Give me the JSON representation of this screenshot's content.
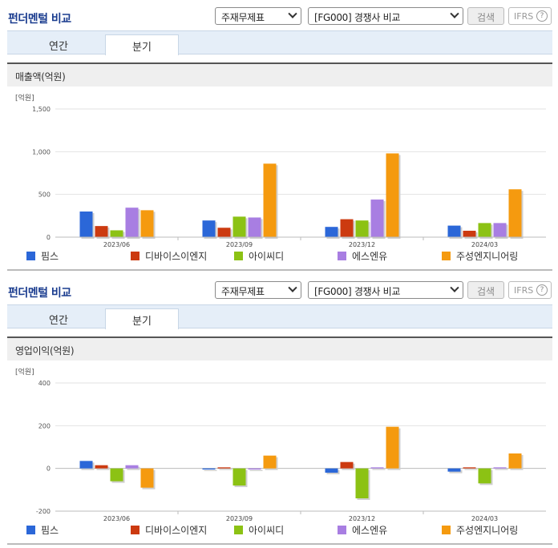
{
  "header": {
    "title": "펀더멘털 비교",
    "select_a": "주재무제표",
    "select_b": "[FG000] 경쟁사 비교",
    "search_label": "검색",
    "ifrs_label": "IFRS",
    "help_label": "?"
  },
  "tabs": [
    "연간",
    "분기"
  ],
  "colors": [
    "#2b67d8",
    "#cc3a10",
    "#8cc214",
    "#a87ee2",
    "#f59a0f"
  ],
  "charts": [
    {
      "section_title": "매출액(억원)",
      "chart_data": {
        "type": "bar",
        "unit": "[억원]",
        "categories": [
          "2023/06",
          "2023/09",
          "2023/12",
          "2024/03"
        ],
        "ylim": [
          0,
          1500
        ],
        "yticks": [
          "1,500",
          "1,000",
          "500",
          "0"
        ],
        "ytick_values": [
          1500,
          1000,
          500,
          0
        ],
        "series": [
          {
            "name": "핌스",
            "values": [
              300,
              195,
              120,
              135
            ]
          },
          {
            "name": "디바이스이엔지",
            "values": [
              130,
              110,
              210,
              75
            ]
          },
          {
            "name": "아이씨디",
            "values": [
              80,
              240,
              195,
              165
            ]
          },
          {
            "name": "에스엔유",
            "values": [
              345,
              230,
              440,
              165
            ]
          },
          {
            "name": "주성엔지니어링",
            "values": [
              315,
              860,
              980,
              560
            ]
          }
        ]
      }
    },
    {
      "section_title": "영업이익(억원)",
      "chart_data": {
        "type": "bar",
        "unit": "[억원]",
        "categories": [
          "2023/06",
          "2023/09",
          "2023/12",
          "2024/03"
        ],
        "ylim": [
          -200,
          400
        ],
        "yticks": [
          "400",
          "200",
          "0",
          "-200"
        ],
        "ytick_values": [
          400,
          200,
          0,
          -200
        ],
        "series": [
          {
            "name": "핌스",
            "values": [
              35,
              -5,
              -20,
              -15
            ]
          },
          {
            "name": "디바이스이엔지",
            "values": [
              15,
              5,
              30,
              5
            ]
          },
          {
            "name": "아이씨디",
            "values": [
              -60,
              -80,
              -140,
              -70
            ]
          },
          {
            "name": "에스엔유",
            "values": [
              15,
              -5,
              5,
              5
            ]
          },
          {
            "name": "주성엔지니어링",
            "values": [
              -90,
              60,
              195,
              70
            ]
          }
        ]
      }
    }
  ]
}
